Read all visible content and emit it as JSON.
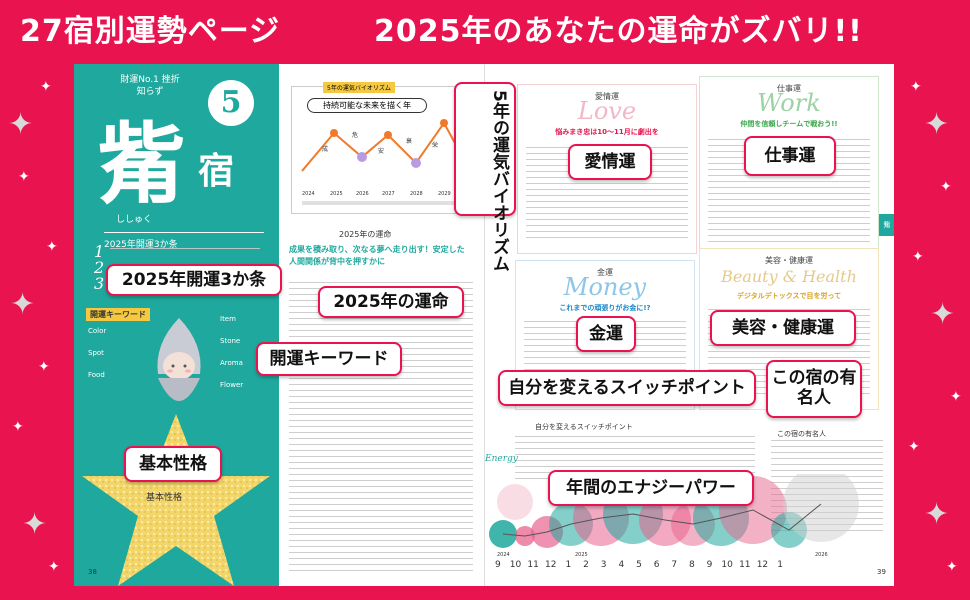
{
  "banner": {
    "left": "27宿別運勢ページ",
    "right": "2025年のあなたの運命がズバリ!!"
  },
  "colors": {
    "accent": "#e8134f",
    "teal": "#1fa89d",
    "gold": "#f5c842"
  },
  "left_page": {
    "tagline": "財運No.1 挫折知らず",
    "number": "5",
    "mansion_big": "觜",
    "mansion_small": "宿",
    "reading": "ししゅく",
    "section_title": "2025年開運3か条",
    "section_numbers": [
      "1",
      "2",
      "3"
    ],
    "keyword_label": "開運キーワード",
    "keywords_left": [
      "Color",
      "Spot",
      "Food"
    ],
    "keywords_right": [
      "Item",
      "Stone",
      "Aroma",
      "Flower"
    ],
    "basic_label": "基本性格",
    "graph_title": "5年の運気バイオリズム",
    "graph_subtitle": "持続可能な未来を描く年",
    "graph_years": [
      "2024",
      "2025",
      "2026",
      "2027",
      "2028",
      "2029"
    ],
    "graph_chars": [
      "成",
      "危",
      "安",
      "衰",
      "栄"
    ],
    "future_heading": "2025年の運命",
    "future_catch": "成果を積み取り、次なる夢へ走り出す！安定した人間関係が背中を押すかに",
    "page_number": "38"
  },
  "right_page": {
    "cards": {
      "love": {
        "title": "愛情運",
        "script": "Love",
        "catch": "悩みまき忠は10〜11月に劇出を"
      },
      "work": {
        "title": "仕事運",
        "script": "Work",
        "catch": "仲間を信頼しチームで戦おう!!"
      },
      "money": {
        "title": "金運",
        "script": "Money",
        "catch": "これまでの頑張りがお金に!?"
      },
      "beauty": {
        "title": "美容・健康運",
        "script": "Beauty & Health",
        "catch": "デジタルデトックスで目を労って"
      }
    },
    "switch_title": "自分を変えるスイッチポイント",
    "famous_title": "この宿の有名人",
    "energy_label": "Energy",
    "months": [
      "9",
      "10",
      "11",
      "12",
      "1",
      "2",
      "3",
      "4",
      "5",
      "6",
      "7",
      "8",
      "9",
      "10",
      "11",
      "12",
      "1"
    ],
    "year_labels": [
      "2024",
      "2025",
      "2026"
    ],
    "side_tab": "觜",
    "page_number": "39"
  },
  "callouts": {
    "biorhythm": "5年の運気バイオリズム",
    "three_points": "2025年開運3か条",
    "future": "2025年の運命",
    "keywords": "開運キーワード",
    "basic": "基本性格",
    "love": "愛情運",
    "work": "仕事運",
    "money": "金運",
    "beauty": "美容・健康運",
    "switch": "自分を変えるスイッチポイント",
    "famous": "この宿の有名人",
    "energy": "年間のエナジーパワー"
  }
}
